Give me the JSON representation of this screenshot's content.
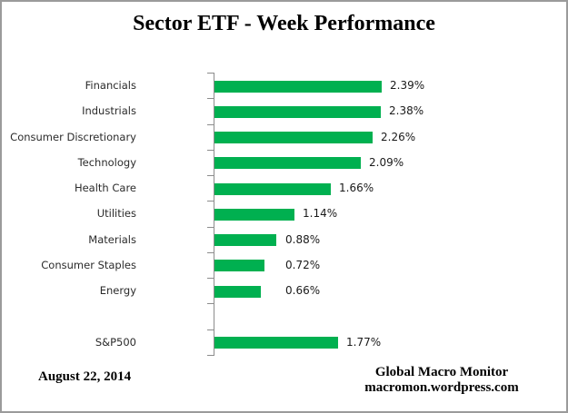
{
  "title": "Sector ETF - Week Performance",
  "footer": {
    "date": "August 22, 2014",
    "source_line1": "Global Macro Monitor",
    "source_line2": "macromon.wordpress.com"
  },
  "chart_data": {
    "type": "bar",
    "orientation": "horizontal",
    "title": "Sector ETF - Week Performance",
    "categories": [
      "Financials",
      "Industrials",
      "Consumer Discretionary",
      "Technology",
      "Health Care",
      "Utilities",
      "Materials",
      "Consumer Staples",
      "Energy",
      "",
      "S&P500"
    ],
    "values": [
      2.39,
      2.38,
      2.26,
      2.09,
      1.66,
      1.14,
      0.88,
      0.72,
      0.66,
      null,
      1.77
    ],
    "value_labels": [
      "2.39%",
      "2.38%",
      "2.26%",
      "2.09%",
      "1.66%",
      "1.14%",
      "0.88%",
      "0.72%",
      "0.66%",
      "",
      "1.77%"
    ],
    "xlim": [
      0,
      3
    ],
    "grid": false,
    "legend": false,
    "bar_color": "#00B050",
    "axis_color": "#8C8C8C"
  }
}
